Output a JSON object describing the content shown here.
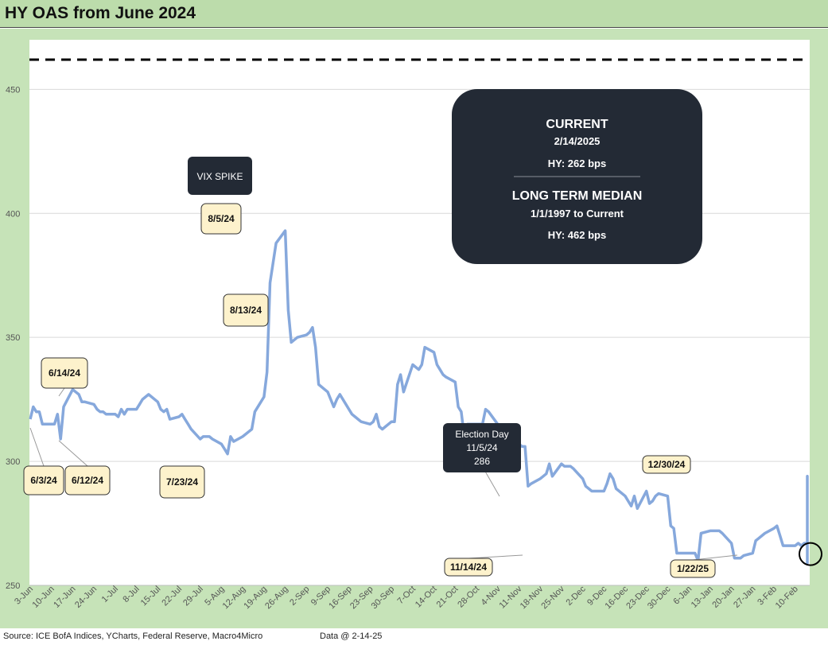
{
  "title": "HY OAS from June 2024",
  "footer": {
    "source": "Source: ICE BofA Indices, YCharts, Federal Reserve, Macro4Micro",
    "data_date": "Data @ 2-14-25"
  },
  "colors": {
    "line": "#86a8dc",
    "frame": "#c6e3b8",
    "title_bar": "#bcdcab",
    "callout_fill": "#fdf2cc",
    "dark_box": "#232a35"
  },
  "info_box": {
    "current_title": "CURRENT",
    "current_date": "2/14/2025",
    "current_value": "HY: 262 bps",
    "median_title": "LONG TERM MEDIAN",
    "median_range": "1/1/1997 to Current",
    "median_value": "HY: 462 bps"
  },
  "chart_data": {
    "type": "line",
    "title": "HY OAS from June 2024",
    "xlabel": "",
    "ylabel": "",
    "ylim": [
      250,
      470
    ],
    "yticks": [
      250,
      300,
      350,
      400,
      450
    ],
    "grid": true,
    "xtick_labels": [
      "3-Jun",
      "10-Jun",
      "17-Jun",
      "24-Jun",
      "1-Jul",
      "8-Jul",
      "15-Jul",
      "22-Jul",
      "29-Jul",
      "5-Aug",
      "12-Aug",
      "19-Aug",
      "26-Aug",
      "2-Sep",
      "9-Sep",
      "16-Sep",
      "23-Sep",
      "30-Sep",
      "7-Oct",
      "14-Oct",
      "21-Oct",
      "28-Oct",
      "4-Nov",
      "11-Nov",
      "18-Nov",
      "25-Nov",
      "2-Dec",
      "9-Dec",
      "16-Dec",
      "23-Dec",
      "30-Dec",
      "6-Jan",
      "13-Jan",
      "20-Jan",
      "27-Jan",
      "3-Feb",
      "10-Feb"
    ],
    "reference_line": {
      "value": 462,
      "style": "dashed"
    },
    "series": [
      {
        "x_start": "2024-06-03",
        "x_end": "2025-02-14",
        "values": [
          317,
          322,
          320,
          320,
          315,
          315,
          315,
          319,
          309,
          322,
          329,
          328,
          327,
          324,
          324,
          323,
          321,
          320,
          320,
          319,
          319,
          318,
          321,
          319,
          321,
          321,
          323,
          325,
          326,
          327,
          324,
          321,
          320,
          321,
          317,
          318,
          319,
          317,
          315,
          313,
          309,
          310,
          310,
          310,
          309,
          307,
          305,
          303,
          310,
          308,
          310,
          311,
          312,
          313,
          320,
          326,
          336,
          372,
          380,
          388,
          393,
          361,
          348,
          349,
          350,
          351,
          352,
          354,
          346,
          331,
          328,
          325,
          322,
          325,
          327,
          321,
          319,
          318,
          317,
          316,
          315,
          316,
          319,
          314,
          313,
          316,
          316,
          331,
          335,
          328,
          339,
          338,
          337,
          339,
          346,
          344,
          339,
          337,
          335,
          334,
          332,
          322,
          320,
          310,
          315,
          315,
          315,
          315,
          321,
          320,
          315,
          313,
          311,
          306,
          304,
          307,
          306,
          306,
          290,
          291,
          293,
          294,
          295,
          299,
          294,
          299,
          298,
          298,
          298,
          297,
          293,
          290,
          289,
          288,
          288,
          288,
          291,
          295,
          293,
          289,
          286,
          284,
          282,
          286,
          281,
          288,
          283,
          284,
          286,
          287,
          286,
          274,
          273,
          263,
          263,
          263,
          263,
          263,
          260,
          271,
          272,
          272,
          272,
          272,
          271,
          267,
          261,
          261,
          261,
          262,
          263,
          268,
          269,
          270,
          271,
          273,
          274,
          270,
          266,
          266,
          266,
          267,
          266,
          267,
          267,
          267,
          267,
          264,
          266,
          266,
          268,
          268,
          269,
          270,
          275,
          275,
          291,
          286,
          286,
          285,
          285,
          286,
          286,
          286,
          284,
          288,
          294,
          293,
          291,
          288,
          281,
          279,
          277,
          276,
          284,
          282,
          280,
          281,
          284,
          285,
          280,
          272,
          273,
          264,
          264,
          264,
          264,
          260,
          259,
          260,
          260,
          262,
          263,
          265,
          266,
          268,
          267,
          268,
          269,
          271,
          273,
          272,
          269,
          266,
          267,
          267,
          266,
          266,
          265,
          266,
          262
        ]
      }
    ],
    "annotations": [
      {
        "label": "VIX SPIKE",
        "type": "dark",
        "date": "2024-08-05"
      },
      {
        "label": "8/5/24",
        "date": "2024-08-05",
        "value": 393
      },
      {
        "label": "8/13/24",
        "date": "2024-08-13",
        "value": 354
      },
      {
        "label": "6/14/24",
        "date": "2024-06-14",
        "value": 329
      },
      {
        "label": "6/3/24",
        "date": "2024-06-03",
        "value": 317
      },
      {
        "label": "6/12/24",
        "date": "2024-06-12",
        "value": 309
      },
      {
        "label": "7/23/24",
        "date": "2024-07-23",
        "value": 303
      },
      {
        "label": "11/14/24",
        "date": "2024-11-14",
        "value": 260
      },
      {
        "label": "12/30/24",
        "date": "2024-12-30",
        "value": 294
      },
      {
        "label": "1/22/25",
        "date": "2025-01-22",
        "value": 259
      },
      {
        "label": "Election Day",
        "label2": "11/5/24",
        "label3": "286",
        "type": "dark",
        "date": "2024-11-05",
        "value": 286
      }
    ]
  }
}
